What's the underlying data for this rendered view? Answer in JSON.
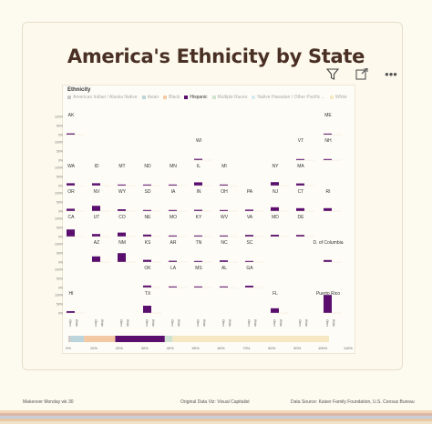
{
  "title": "America's Ethnicity by State",
  "legend": {
    "title": "Ethnicity",
    "items": [
      {
        "label": "American Indian / Alaska Native",
        "color": "#c9c9c9",
        "active": false
      },
      {
        "label": "Asian",
        "color": "#bcd4dc",
        "active": false
      },
      {
        "label": "Black",
        "color": "#f3c9a3",
        "active": false
      },
      {
        "label": "Hispanic",
        "color": "#5a0f6e",
        "active": true
      },
      {
        "label": "Multiple Races",
        "color": "#cfe3d0",
        "active": false
      },
      {
        "label": "Native Hawaiian / Other Pacific ...",
        "color": "#d7ecf0",
        "active": false
      },
      {
        "label": "White",
        "color": "#f7e8c4",
        "active": false
      }
    ]
  },
  "toolbar": {
    "filter_icon": "filter-icon",
    "focus_icon": "focus-mode-icon",
    "more_label": "•••"
  },
  "chart_data": {
    "type": "bar",
    "series_shown": "Hispanic",
    "y_ticks": [
      "100%",
      "50%",
      "0%"
    ],
    "x_labels": [
      "Other",
      "White"
    ],
    "tiles": [
      {
        "state": "AK",
        "col": 0,
        "row": 0,
        "value": 0.07
      },
      {
        "state": "ME",
        "col": 10,
        "row": 0,
        "value": 0.02
      },
      {
        "state": "WI",
        "col": 5,
        "row": 1,
        "value": 0.07
      },
      {
        "state": "VT",
        "col": 9,
        "row": 1,
        "value": 0.02
      },
      {
        "state": "NH",
        "col": 10,
        "row": 1,
        "value": 0.04
      },
      {
        "state": "WA",
        "col": 0,
        "row": 2,
        "value": 0.13
      },
      {
        "state": "ID",
        "col": 1,
        "row": 2,
        "value": 0.13
      },
      {
        "state": "MT",
        "col": 2,
        "row": 2,
        "value": 0.04
      },
      {
        "state": "ND",
        "col": 3,
        "row": 2,
        "value": 0.04
      },
      {
        "state": "MN",
        "col": 4,
        "row": 2,
        "value": 0.06
      },
      {
        "state": "IL",
        "col": 5,
        "row": 2,
        "value": 0.18
      },
      {
        "state": "MI",
        "col": 6,
        "row": 2,
        "value": 0.05
      },
      {
        "state": "NY",
        "col": 8,
        "row": 2,
        "value": 0.19
      },
      {
        "state": "MA",
        "col": 9,
        "row": 2,
        "value": 0.12
      },
      {
        "state": "OR",
        "col": 0,
        "row": 3,
        "value": 0.13
      },
      {
        "state": "NV",
        "col": 1,
        "row": 3,
        "value": 0.29
      },
      {
        "state": "WY",
        "col": 2,
        "row": 3,
        "value": 0.1
      },
      {
        "state": "SD",
        "col": 3,
        "row": 3,
        "value": 0.04
      },
      {
        "state": "IA",
        "col": 4,
        "row": 3,
        "value": 0.06
      },
      {
        "state": "IN",
        "col": 5,
        "row": 3,
        "value": 0.07
      },
      {
        "state": "OH",
        "col": 6,
        "row": 3,
        "value": 0.04
      },
      {
        "state": "PA",
        "col": 7,
        "row": 3,
        "value": 0.08
      },
      {
        "state": "NJ",
        "col": 8,
        "row": 3,
        "value": 0.21
      },
      {
        "state": "CT",
        "col": 9,
        "row": 3,
        "value": 0.16
      },
      {
        "state": "RI",
        "col": 10,
        "row": 3,
        "value": 0.16
      },
      {
        "state": "CA",
        "col": 0,
        "row": 4,
        "value": 0.39
      },
      {
        "state": "UT",
        "col": 1,
        "row": 4,
        "value": 0.14
      },
      {
        "state": "CO",
        "col": 2,
        "row": 4,
        "value": 0.22
      },
      {
        "state": "NE",
        "col": 3,
        "row": 4,
        "value": 0.11
      },
      {
        "state": "MO",
        "col": 4,
        "row": 4,
        "value": 0.04
      },
      {
        "state": "KY",
        "col": 5,
        "row": 4,
        "value": 0.04
      },
      {
        "state": "WV",
        "col": 6,
        "row": 4,
        "value": 0.01
      },
      {
        "state": "VA",
        "col": 7,
        "row": 4,
        "value": 0.09
      },
      {
        "state": "MD",
        "col": 8,
        "row": 4,
        "value": 0.1
      },
      {
        "state": "DE",
        "col": 9,
        "row": 4,
        "value": 0.09
      },
      {
        "state": "AZ",
        "col": 1,
        "row": 5,
        "value": 0.31
      },
      {
        "state": "NM",
        "col": 2,
        "row": 5,
        "value": 0.49
      },
      {
        "state": "KS",
        "col": 3,
        "row": 5,
        "value": 0.12
      },
      {
        "state": "AR",
        "col": 4,
        "row": 5,
        "value": 0.07
      },
      {
        "state": "TN",
        "col": 5,
        "row": 5,
        "value": 0.05
      },
      {
        "state": "NC",
        "col": 6,
        "row": 5,
        "value": 0.09
      },
      {
        "state": "SC",
        "col": 7,
        "row": 5,
        "value": 0.06
      },
      {
        "state": "D. of Columbia",
        "col": 10,
        "row": 5,
        "value": 0.11
      },
      {
        "state": "OK",
        "col": 3,
        "row": 6,
        "value": 0.11
      },
      {
        "state": "LA",
        "col": 4,
        "row": 6,
        "value": 0.05
      },
      {
        "state": "MS",
        "col": 5,
        "row": 6,
        "value": 0.03
      },
      {
        "state": "AL",
        "col": 6,
        "row": 6,
        "value": 0.04
      },
      {
        "state": "GA",
        "col": 7,
        "row": 6,
        "value": 0.1
      },
      {
        "state": "HI",
        "col": 0,
        "row": 7,
        "value": 0.1
      },
      {
        "state": "TX",
        "col": 3,
        "row": 7,
        "value": 0.4
      },
      {
        "state": "FL",
        "col": 8,
        "row": 7,
        "value": 0.26
      },
      {
        "state": "Puerto Rico",
        "col": 10,
        "row": 7,
        "value": 0.99
      }
    ],
    "summary_bar": {
      "axis_labels": [
        "0%",
        "10%",
        "20%",
        "30%",
        "40%",
        "50%",
        "60%",
        "70%",
        "80%",
        "90%",
        "100%",
        "110%"
      ],
      "segments": [
        {
          "name": "American Indian / Alaska Native",
          "start": 0,
          "end": 1,
          "color": "#c9c9c9"
        },
        {
          "name": "Asian",
          "start": 1,
          "end": 6,
          "color": "#bcd4dc"
        },
        {
          "name": "Black",
          "start": 6,
          "end": 18,
          "color": "#f3c9a3"
        },
        {
          "name": "Hispanic",
          "start": 18,
          "end": 37,
          "color": "#5a0f6e"
        },
        {
          "name": "Multiple Races",
          "start": 37,
          "end": 40,
          "color": "#cfe3d0"
        },
        {
          "name": "White",
          "start": 40,
          "end": 100,
          "color": "#f7e8c4"
        }
      ]
    }
  },
  "footer": {
    "left": "Makeover Monday wk 30",
    "center": "Original Data Viz: Visual Capitalist",
    "right": "Data Source: Kaiser Family Foundation, U.S. Census Bureau"
  },
  "stripe_colors": [
    "#f3d7b8",
    "#d9b8a8",
    "#c7ced8",
    "#e8c9a6",
    "#f1e3c7"
  ]
}
